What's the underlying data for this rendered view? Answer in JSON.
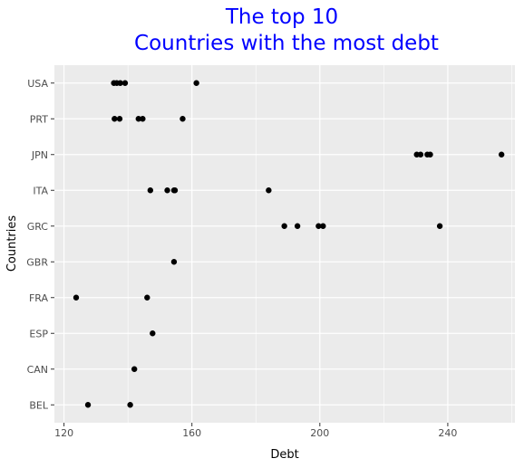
{
  "chart_data": {
    "type": "scatter",
    "title_lines": [
      "The top 10",
      "Countries with the most debt"
    ],
    "xlabel": "Debt",
    "ylabel": "Countries",
    "xlim": [
      117,
      261
    ],
    "x_ticks": [
      120,
      160,
      200,
      240
    ],
    "grid": true,
    "categories": [
      "BEL",
      "CAN",
      "ESP",
      "FRA",
      "GBR",
      "GRC",
      "ITA",
      "JPN",
      "PRT",
      "USA"
    ],
    "series": [
      {
        "points": [
          {
            "country": "BEL",
            "debt": 127.5
          },
          {
            "country": "BEL",
            "debt": 140.7
          },
          {
            "country": "CAN",
            "debt": 142.0
          },
          {
            "country": "ESP",
            "debt": 147.7
          },
          {
            "country": "FRA",
            "debt": 123.8
          },
          {
            "country": "FRA",
            "debt": 146.0
          },
          {
            "country": "GBR",
            "debt": 154.4
          },
          {
            "country": "GRC",
            "debt": 188.9
          },
          {
            "country": "GRC",
            "debt": 193.0
          },
          {
            "country": "GRC",
            "debt": 199.6
          },
          {
            "country": "GRC",
            "debt": 201.0
          },
          {
            "country": "GRC",
            "debt": 237.5
          },
          {
            "country": "ITA",
            "debt": 147.0
          },
          {
            "country": "ITA",
            "debt": 152.3
          },
          {
            "country": "ITA",
            "debt": 154.4
          },
          {
            "country": "ITA",
            "debt": 154.7
          },
          {
            "country": "ITA",
            "debt": 184.0
          },
          {
            "country": "JPN",
            "debt": 230.3
          },
          {
            "country": "JPN",
            "debt": 231.5
          },
          {
            "country": "JPN",
            "debt": 233.6
          },
          {
            "country": "JPN",
            "debt": 234.5
          },
          {
            "country": "JPN",
            "debt": 256.8
          },
          {
            "country": "PRT",
            "debt": 135.8
          },
          {
            "country": "PRT",
            "debt": 137.4
          },
          {
            "country": "PRT",
            "debt": 143.3
          },
          {
            "country": "PRT",
            "debt": 144.6
          },
          {
            "country": "PRT",
            "debt": 157.1
          },
          {
            "country": "USA",
            "debt": 135.6
          },
          {
            "country": "USA",
            "debt": 136.5
          },
          {
            "country": "USA",
            "debt": 137.6
          },
          {
            "country": "USA",
            "debt": 139.1
          },
          {
            "country": "USA",
            "debt": 161.4
          }
        ]
      }
    ],
    "colors": {
      "title": "#0000ff",
      "panel": "#ebebeb",
      "grid": "#ffffff",
      "point": "#000000",
      "tick_text": "#4d4d4d"
    }
  }
}
